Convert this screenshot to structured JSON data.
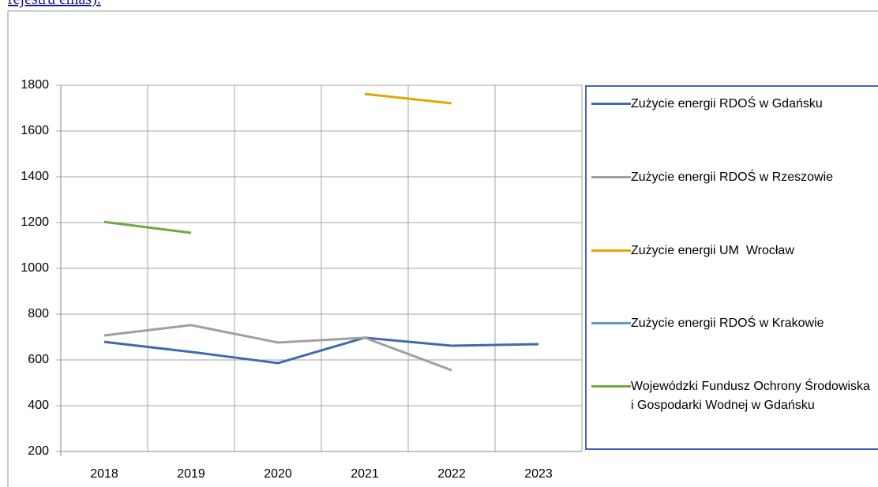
{
  "caption": "rejestru emas).",
  "chart_data": {
    "type": "line",
    "categories": [
      "2018",
      "2019",
      "2020",
      "2021",
      "2022",
      "2023"
    ],
    "series": [
      {
        "name": "Zużycie energii RDOŚ w Gdańsku",
        "color": "#4169b0",
        "values": [
          679,
          635,
          586,
          697,
          662,
          669
        ]
      },
      {
        "name": "Zużycie energii RDOŚ w Rzeszowie",
        "color": "#a0a0a0",
        "values": [
          707,
          752,
          676,
          697,
          555,
          null
        ]
      },
      {
        "name": "Zużycie energii UM  Wrocław",
        "color": "#e0a800",
        "values": [
          null,
          null,
          null,
          1762,
          1721,
          null
        ]
      },
      {
        "name": "Zużycie energii RDOŚ w Krakowie",
        "color": "#5b9bd5",
        "values": [
          null,
          null,
          null,
          null,
          null,
          null
        ]
      },
      {
        "name": "Wojewódzki Fundusz Ochrony Środowiska i Gospodarki Wodnej w Gdańsku",
        "color": "#70a844",
        "values": [
          1203,
          1155,
          null,
          null,
          null,
          null
        ]
      }
    ],
    "ylim": [
      200,
      1800
    ],
    "yticks": [
      200,
      400,
      600,
      800,
      1000,
      1200,
      1400,
      1600,
      1800
    ],
    "grid": true,
    "legend": "right"
  }
}
